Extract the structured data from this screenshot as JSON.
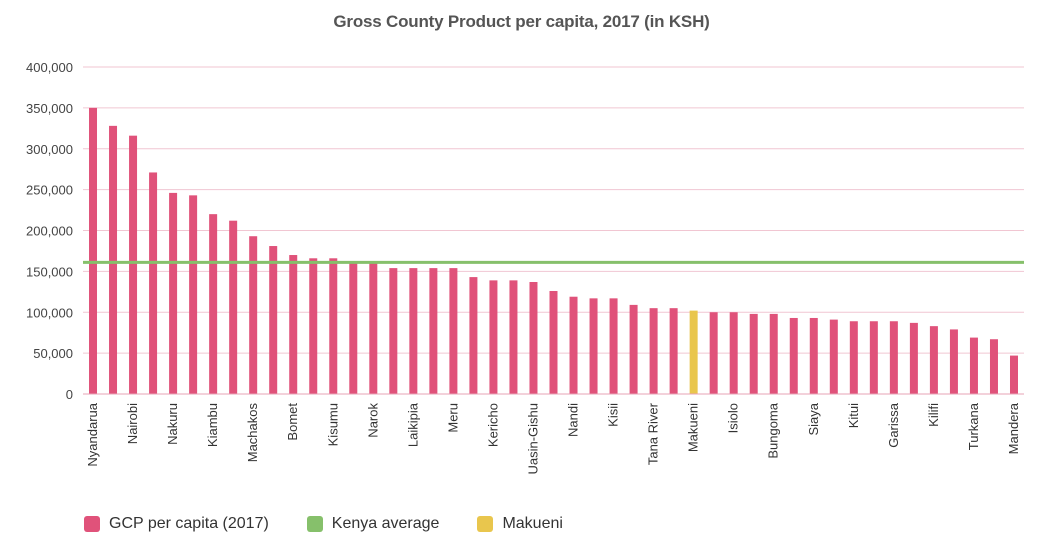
{
  "chart_data": {
    "type": "bar",
    "title": "Gross County Product per capita, 2017 (in KSH)",
    "xlabel": "",
    "ylabel": "",
    "ylim": [
      0,
      400000
    ],
    "yticks": [
      0,
      50000,
      100000,
      150000,
      200000,
      250000,
      300000,
      350000,
      400000
    ],
    "ytick_labels": [
      "0",
      "50,000",
      "100,000",
      "150,000",
      "200,000",
      "250,000",
      "300,000",
      "350,000",
      "400,000"
    ],
    "grid": true,
    "legend_position": "bottom-left",
    "categories": [
      "Nyandarua",
      "",
      "Nairobi",
      "",
      "Nakuru",
      "",
      "Kiambu",
      "",
      "Machakos",
      "",
      "Bomet",
      "",
      "Kisumu",
      "",
      "Narok",
      "",
      "Laikipia",
      "",
      "Meru",
      "",
      "Kericho",
      "",
      "Uasin-Gishu",
      "",
      "Nandi",
      "",
      "Kisii",
      "",
      "Tana River",
      "",
      "Makueni",
      "",
      "Isiolo",
      "",
      "Bungoma",
      "",
      "Siaya",
      "",
      "Kitui",
      "",
      "Garissa",
      "",
      "Kilifi",
      "",
      "Turkana",
      "",
      "Mandera"
    ],
    "series": [
      {
        "name": "GCP per capita (2017)",
        "color": "#e0527a",
        "values": [
          350000,
          328000,
          316000,
          271000,
          246000,
          243000,
          220000,
          212000,
          193000,
          181000,
          170000,
          166000,
          166000,
          160000,
          160000,
          154000,
          154000,
          154000,
          154000,
          143000,
          139000,
          139000,
          137000,
          126000,
          119000,
          117000,
          117000,
          109000,
          105000,
          105000,
          102000,
          100000,
          100000,
          98000,
          98000,
          93000,
          93000,
          91000,
          89000,
          89000,
          89000,
          87000,
          83000,
          79000,
          69000,
          67000,
          47000
        ],
        "highlight_index": 30
      },
      {
        "name": "Kenya average",
        "color": "#86c06b",
        "value": 161000
      },
      {
        "name": "Makueni",
        "color": "#e9c64d"
      }
    ]
  }
}
